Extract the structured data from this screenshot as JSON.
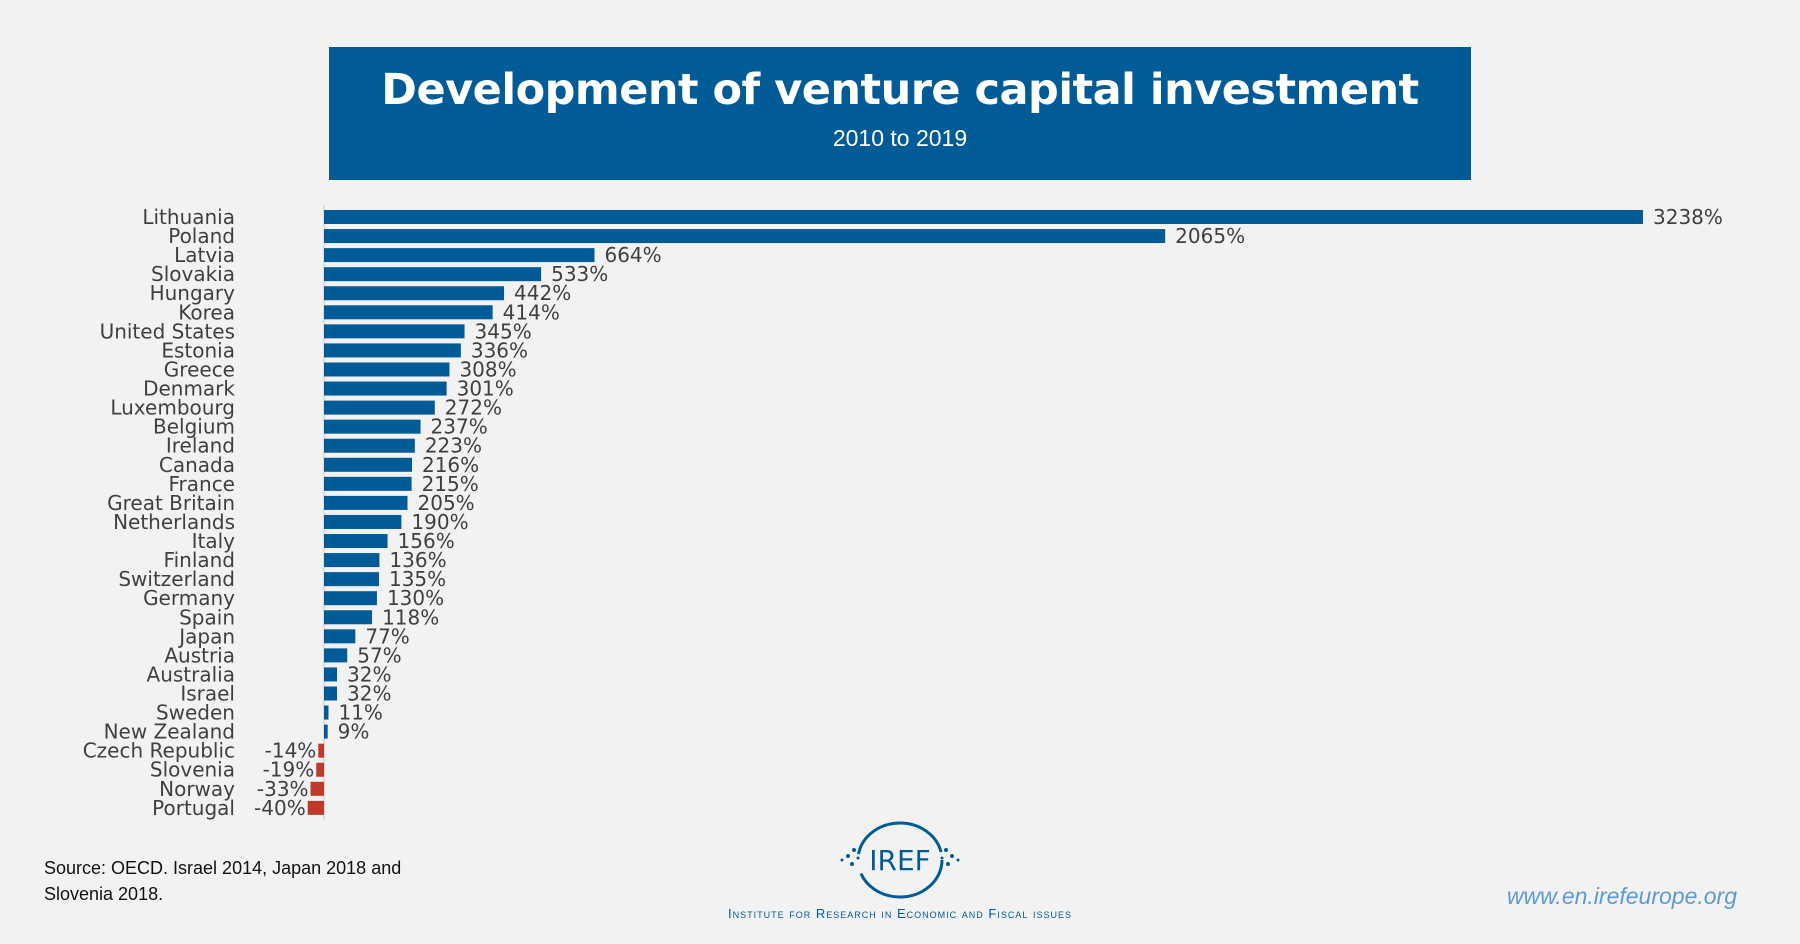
{
  "chart_data": {
    "type": "bar",
    "orientation": "horizontal",
    "title": "Development of venture capital investment",
    "subtitle": "2010 to 2019",
    "categories": [
      "Lithuania",
      "Poland",
      "Latvia",
      "Slovakia",
      "Hungary",
      "Korea",
      "United States",
      "Estonia",
      "Greece",
      "Denmark",
      "Luxembourg",
      "Belgium",
      "Ireland",
      "Canada",
      "France",
      "Great Britain",
      "Netherlands",
      "Italy",
      "Finland",
      "Switzerland",
      "Germany",
      "Spain",
      "Japan",
      "Austria",
      "Australia",
      "Israel",
      "Sweden",
      "New Zealand",
      "Czech Republic",
      "Slovenia",
      "Norway",
      "Portugal"
    ],
    "values": [
      3238,
      2065,
      664,
      533,
      442,
      414,
      345,
      336,
      308,
      301,
      272,
      237,
      223,
      216,
      215,
      205,
      190,
      156,
      136,
      135,
      130,
      118,
      77,
      57,
      32,
      32,
      11,
      9,
      -14,
      -19,
      -33,
      -40
    ],
    "value_suffix": "%",
    "xlabel": "",
    "ylabel": "",
    "xlim": [
      -40,
      3238
    ],
    "colors": {
      "positive": "#005b96",
      "negative": "#c0392b"
    }
  },
  "footer": {
    "source_line1": "Source: OECD. Israel 2014, Japan 2018 and",
    "source_line2": "Slovenia 2018.",
    "logo_text": "IREF",
    "tagline": "Institute for Research in Economic and Fiscal issues",
    "url": "www.en.irefeurope.org"
  }
}
